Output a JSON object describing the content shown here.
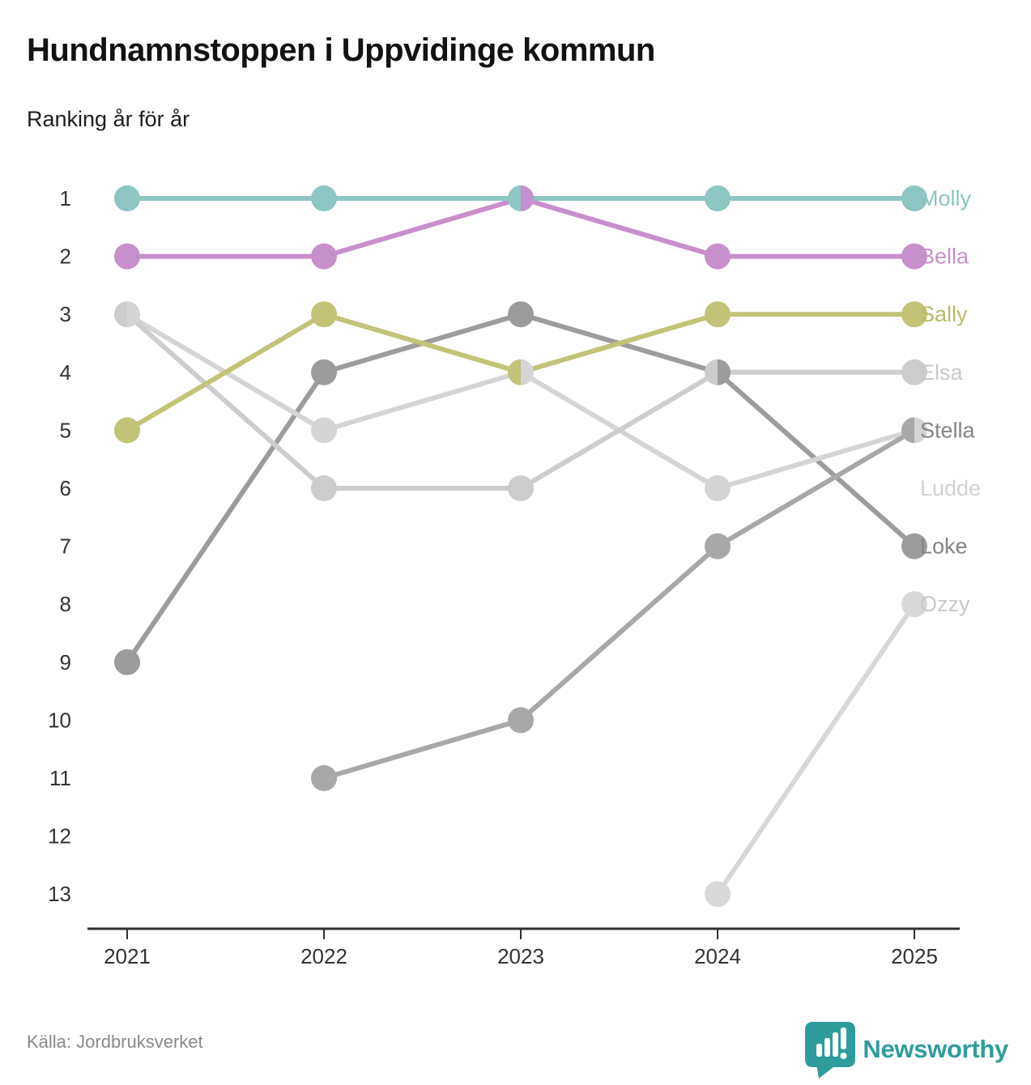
{
  "title": "Hundnamnstoppen i Uppvidinge kommun",
  "subtitle": "Ranking år för år",
  "source": "Källa: Jordbruksverket",
  "brand": {
    "name": "Newsworthy",
    "color": "#2f9c9c",
    "icon": "newsworthy-pin-logo"
  },
  "chart_data": {
    "type": "line",
    "variant": "bump-ranking",
    "x": [
      2021,
      2022,
      2023,
      2024,
      2025
    ],
    "y_ticks": [
      1,
      2,
      3,
      4,
      5,
      6,
      7,
      8,
      9,
      10,
      11,
      12,
      13
    ],
    "ylim": [
      1,
      13
    ],
    "ylabel": "",
    "xlabel": "",
    "grid": false,
    "legend": "end-of-line-labels",
    "series": [
      {
        "name": "Molly",
        "color": "#8dc6c3",
        "label_color": "#8cc5c2",
        "values": [
          1,
          1,
          1,
          1,
          1
        ]
      },
      {
        "name": "Bella",
        "color": "#c78fcb",
        "label_color": "#c98fcd",
        "values": [
          2,
          2,
          1,
          2,
          2
        ]
      },
      {
        "name": "Sally",
        "color": "#c3c377",
        "label_color": "#b9ba6a",
        "values": [
          5,
          3,
          4,
          3,
          3
        ]
      },
      {
        "name": "Elsa",
        "color": "#cdcdcd",
        "label_color": "#c9c9c9",
        "values": [
          3,
          6,
          6,
          4,
          4
        ]
      },
      {
        "name": "Stella",
        "color": "#a8a8a8",
        "label_color": "#848484",
        "values": [
          null,
          11,
          10,
          7,
          5
        ]
      },
      {
        "name": "Ludde",
        "color": "#d5d5d5",
        "label_color": "#d2d2d2",
        "values": [
          3,
          5,
          4,
          6,
          5
        ]
      },
      {
        "name": "Loke",
        "color": "#9c9c9c",
        "label_color": "#848484",
        "values": [
          9,
          4,
          3,
          4,
          7
        ]
      },
      {
        "name": "Ozzy",
        "color": "#d8d8d8",
        "label_color": "#c9c9c9",
        "values": [
          null,
          null,
          null,
          13,
          8
        ]
      }
    ],
    "ties_note": "2023: Molly & Bella share rank 1; 2023: Sally & Ludde share rank 4; 2024: Elsa & Loke share rank 4; 2025: Stella & Ludde share rank 5"
  }
}
